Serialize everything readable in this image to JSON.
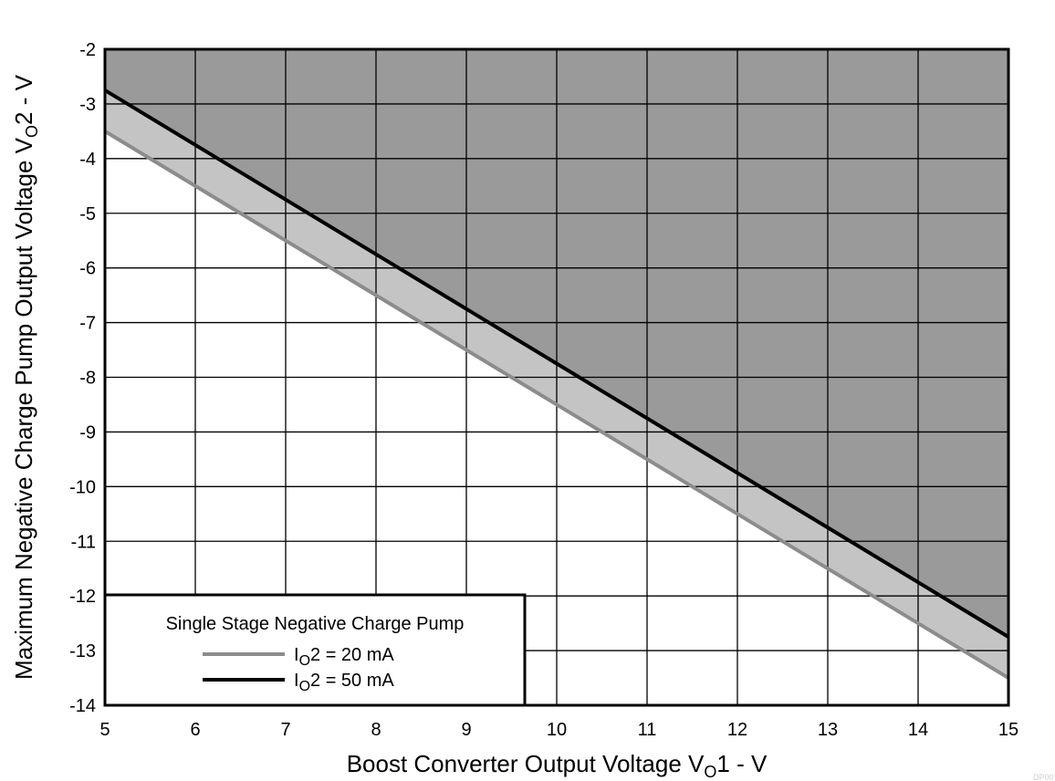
{
  "chart_data": {
    "type": "area",
    "title": "",
    "xlabel": {
      "base": "Boost Converter Output Voltage V",
      "sub": "O",
      "tail": "1 - V"
    },
    "ylabel": {
      "base": "Maximum Negative Charge Pump Output Voltage V",
      "sub": "O",
      "tail": "2 - V"
    },
    "xlim": [
      5,
      15
    ],
    "ylim": [
      -14,
      -2
    ],
    "xticks": [
      5,
      6,
      7,
      8,
      9,
      10,
      11,
      12,
      13,
      14,
      15
    ],
    "yticks": [
      -2,
      -3,
      -4,
      -5,
      -6,
      -7,
      -8,
      -9,
      -10,
      -11,
      -12,
      -13,
      -14
    ],
    "grid": true,
    "legend_position": "bottom-left",
    "legend_title": "Single Stage Negative Charge Pump",
    "series": [
      {
        "name": {
          "base": "I",
          "sub": "O",
          "tail": "2 = 20 mA"
        },
        "color": "#8c8c8c",
        "fill": "#c4c4c4",
        "x": [
          5,
          15
        ],
        "y": [
          -3.5,
          -13.5
        ]
      },
      {
        "name": {
          "base": "I",
          "sub": "O",
          "tail": "2 = 50 mA"
        },
        "color": "#000000",
        "fill": "#9a9a9a",
        "x": [
          5,
          15
        ],
        "y": [
          -2.75,
          -12.75
        ]
      }
    ],
    "corner_mark": "DP00"
  }
}
